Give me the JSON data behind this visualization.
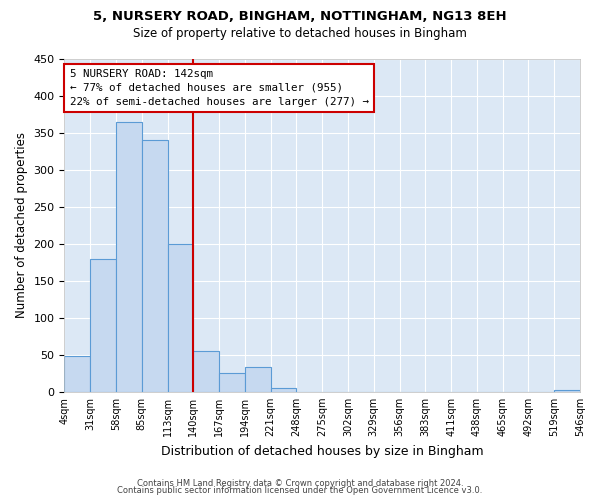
{
  "title1": "5, NURSERY ROAD, BINGHAM, NOTTINGHAM, NG13 8EH",
  "title2": "Size of property relative to detached houses in Bingham",
  "xlabel": "Distribution of detached houses by size in Bingham",
  "ylabel": "Number of detached properties",
  "bin_labels": [
    "4sqm",
    "31sqm",
    "58sqm",
    "85sqm",
    "113sqm",
    "140sqm",
    "167sqm",
    "194sqm",
    "221sqm",
    "248sqm",
    "275sqm",
    "302sqm",
    "329sqm",
    "356sqm",
    "383sqm",
    "411sqm",
    "438sqm",
    "465sqm",
    "492sqm",
    "519sqm",
    "546sqm"
  ],
  "bar_heights": [
    49,
    180,
    365,
    340,
    200,
    55,
    26,
    33,
    5,
    0,
    0,
    0,
    0,
    0,
    0,
    0,
    0,
    0,
    0,
    2
  ],
  "bar_color": "#c6d9f0",
  "bar_edge_color": "#5b9bd5",
  "vline_x": 5,
  "vline_color": "#cc0000",
  "annotation_title": "5 NURSERY ROAD: 142sqm",
  "annotation_line1": "← 77% of detached houses are smaller (955)",
  "annotation_line2": "22% of semi-detached houses are larger (277) →",
  "annotation_box_color": "#cc0000",
  "ylim": [
    0,
    450
  ],
  "footer1": "Contains HM Land Registry data © Crown copyright and database right 2024.",
  "footer2": "Contains public sector information licensed under the Open Government Licence v3.0.",
  "figure_bg_color": "#ffffff",
  "plot_bg_color": "#dce8f5"
}
